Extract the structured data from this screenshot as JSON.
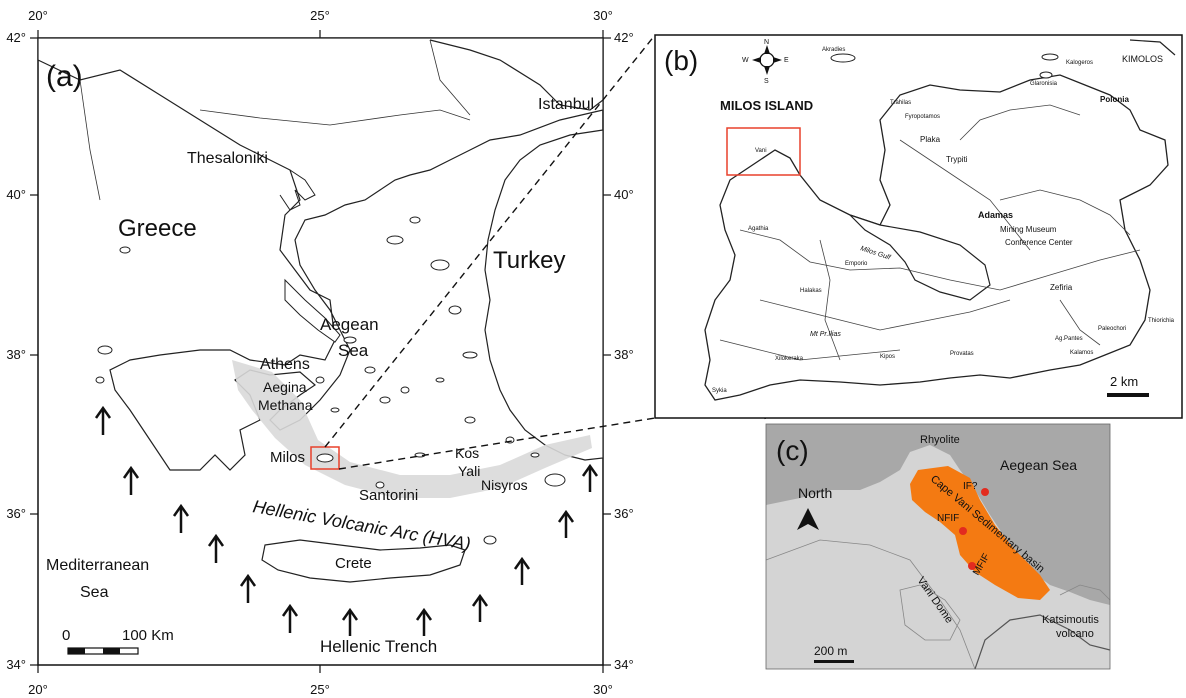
{
  "panel_a": {
    "label": "(a)",
    "lon_ticks": [
      "20°",
      "25°",
      "30°"
    ],
    "lat_ticks": [
      "42°",
      "40°",
      "38°",
      "36°",
      "34°"
    ],
    "places": {
      "istanbul": "Istanbul",
      "thessaloniki": "Thesaloniki",
      "greece": "Greece",
      "turkey": "Turkey",
      "aegean_sea": "Aegean\nSea",
      "athens": "Athens",
      "aegina_methana": "Aegina\nMethana",
      "milos": "Milos",
      "kos": "Kos",
      "yali": "Yali",
      "nisyros": "Nisyros",
      "santorini": "Santorini",
      "hva": "Hellenic Volcanic Arc (HVA)",
      "mediterranean": "Mediterranean\nSea",
      "crete": "Crete",
      "hellenic_trench": "Hellenic Trench"
    },
    "scale_bar": {
      "start": "0",
      "end": "100 Km"
    },
    "colors": {
      "arc": "#d9d9d9",
      "highlight_box": "#e8412c",
      "land_outline": "#222222"
    }
  },
  "panel_b": {
    "label": "(b)",
    "title": "MILOS ISLAND",
    "compass": {
      "n": "N",
      "s": "S",
      "e": "E",
      "w": "W"
    },
    "places": {
      "kimolos": "KIMOLOS",
      "akradies": "Akradies",
      "kalogeros": "Kalogeros",
      "glaronisia": "Glaronisia",
      "polonia": "Polonia",
      "trahilas": "Trahilas",
      "fyropotamos": "Fyropotamos",
      "plaka": "Plaka",
      "tripiti": "Tripiti",
      "trypiti": "Trypiti",
      "adamas_district": "Adamas",
      "pollonia": "Pollonia",
      "adamas": "Adamas",
      "mining_museum": "Mining Museum",
      "conference_center": "Conference Center",
      "milos_gulf": "Milos Gulf",
      "agathia": "Agathia",
      "emporio": "Emporio",
      "halakas": "Halakas",
      "zefiria": "Zefiria",
      "mt_profitias": "Mt Pr.Ilias",
      "xilokeraka": "Xilokeraka",
      "kipos": "Kipos",
      "provatas": "Provatas",
      "ag_pantes": "Ag.Pantes",
      "kalamos": "Kalamos",
      "paleochori": "Paleochori",
      "thiorichia": "Thiorichia",
      "vani": "Vani",
      "sykia": "Sykia"
    },
    "scale_bar": "2 km",
    "colors": {
      "highlight_box": "#e8412c"
    }
  },
  "panel_c": {
    "label": "(c)",
    "places": {
      "rhyolite": "Rhyolite",
      "aegean_sea": "Aegean Sea",
      "north": "North",
      "basin": "Cape Vani Sedimentary basin",
      "if": "IF?",
      "nfif": "NFIF",
      "mfif": "MFIF",
      "vani_dome": "Vani Dome",
      "katsimoutis": "Katsimoutis\nvolcano"
    },
    "scale_bar": "200 m",
    "colors": {
      "basin": "#f47a12",
      "points": "#e22b1f",
      "land": "#d2d2d2",
      "sea": "#9e9e9e"
    }
  }
}
